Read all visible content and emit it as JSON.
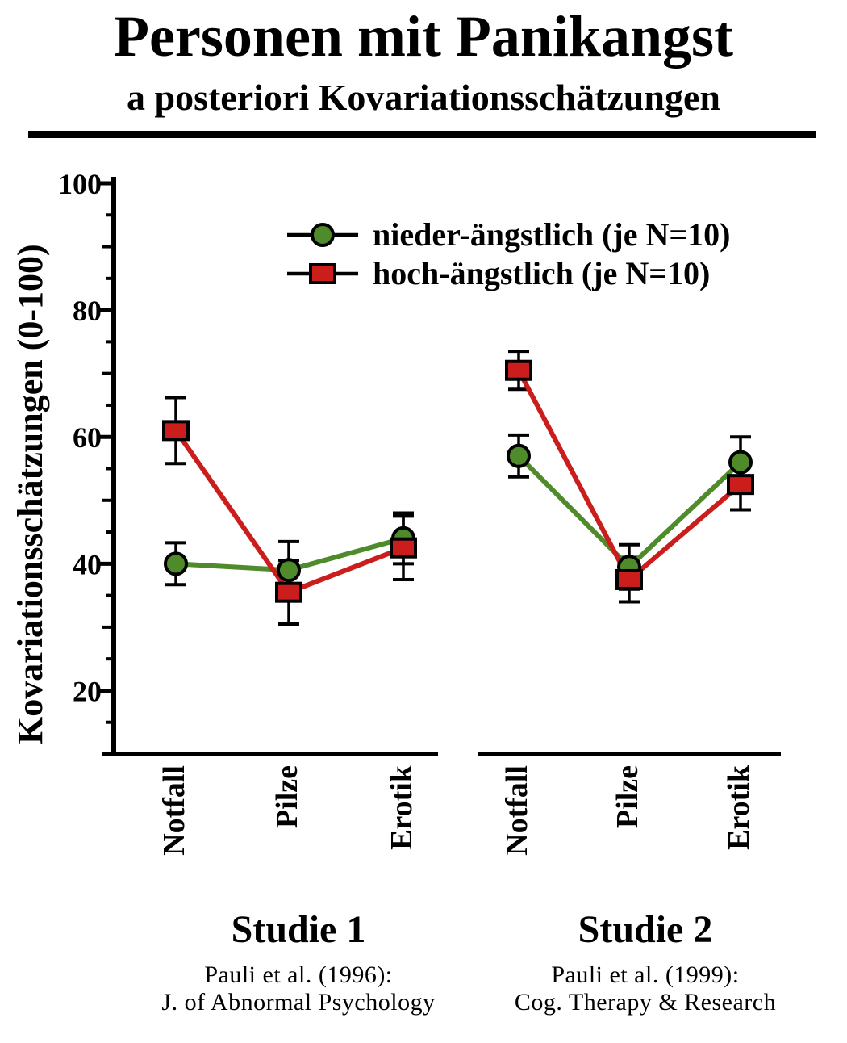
{
  "title": "Personen mit Panikangst",
  "subtitle": "a posteriori Kovariationsschätzungen",
  "chart_data": {
    "type": "line",
    "title": "Personen mit Panikangst",
    "subtitle": "a posteriori Kovariationsschätzungen",
    "ylabel": "Kovariationsschätzungen (0-100)",
    "ylim": [
      10,
      100
    ],
    "yticks_labeled": [
      20,
      40,
      60,
      80,
      100
    ],
    "ytick_minor_step": 5,
    "grid": false,
    "legend_position": "inside top",
    "error_bars": true,
    "legend": [
      {
        "name": "nieder-ängstlich (je N=10)",
        "marker": "circle",
        "color": "#4f8b2b"
      },
      {
        "name": "hoch-ängstlich (je N=10)",
        "marker": "square",
        "color": "#cc1d1d"
      }
    ],
    "panels": [
      {
        "label": "Studie 1",
        "caption": [
          "Pauli et al. (1996):",
          "J. of Abnormal Psychology"
        ],
        "categories": [
          "Notfall",
          "Pilze",
          "Erotik"
        ],
        "series": [
          {
            "name": "nieder-ängstlich (je N=10)",
            "values": [
              40,
              39,
              44
            ],
            "errors": [
              3.3,
              4.5,
              4
            ]
          },
          {
            "name": "hoch-ängstlich (je N=10)",
            "values": [
              61,
              35.5,
              42.5
            ],
            "errors": [
              5.2,
              5,
              5
            ]
          }
        ]
      },
      {
        "label": "Studie 2",
        "caption": [
          "Pauli et al. (1999):",
          "Cog. Therapy & Research"
        ],
        "categories": [
          "Notfall",
          "Pilze",
          "Erotik"
        ],
        "series": [
          {
            "name": "nieder-ängstlich (je N=10)",
            "values": [
              57,
              39.5,
              56
            ],
            "errors": [
              3.3,
              3.5,
              4
            ]
          },
          {
            "name": "hoch-ängstlich (je N=10)",
            "values": [
              70.5,
              37.5,
              52.5
            ],
            "errors": [
              3,
              3.5,
              4
            ]
          }
        ]
      }
    ],
    "colors": {
      "axis": "#000000",
      "background": "#ffffff"
    }
  }
}
